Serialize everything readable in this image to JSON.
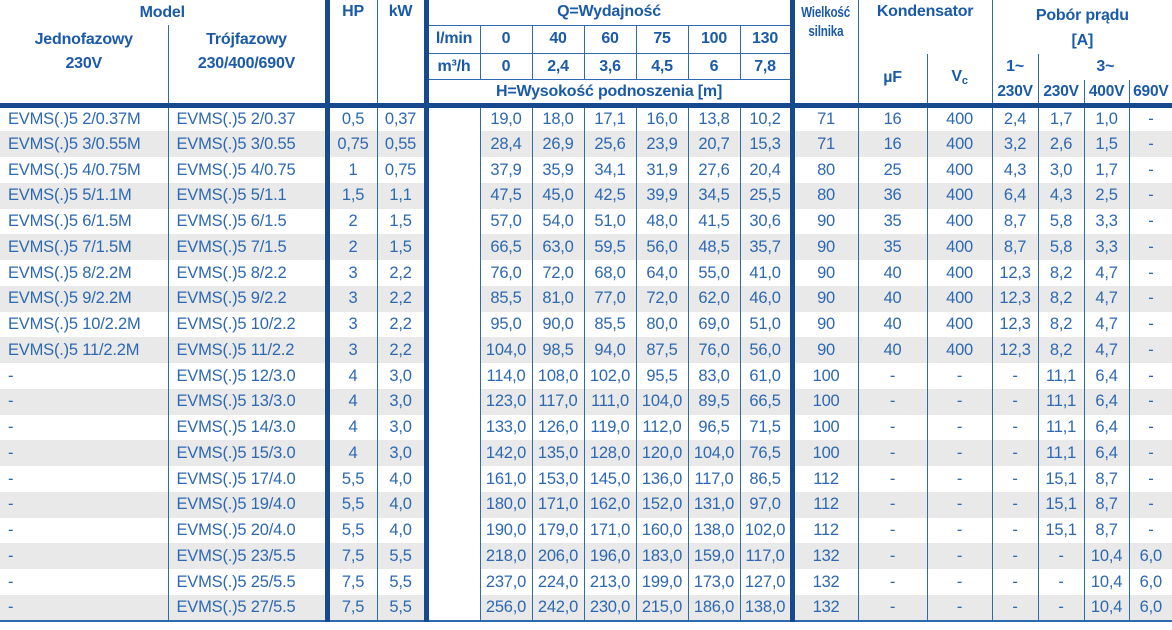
{
  "colors": {
    "text_blue": "#2d68b2",
    "header_blue": "#1a5aa8",
    "bar_navy": "#17498e",
    "stripe_gray": "#e9e9e9"
  },
  "header": {
    "model": "Model",
    "single_phase_label": "Jednofazowy",
    "single_phase_voltage": "230V",
    "three_phase_label": "Trójfazowy",
    "three_phase_voltage": "230/400/690V",
    "hp": "HP",
    "kw": "kW",
    "q_title": "Q=Wydajność",
    "lmin_label": "l/min",
    "m3h_label": "m³/h",
    "lmin_values": [
      "0",
      "40",
      "60",
      "75",
      "100",
      "130"
    ],
    "m3h_values": [
      "0",
      "2,4",
      "3,6",
      "4,5",
      "6",
      "7,8"
    ],
    "h_row_label": "H=Wysokość podnoszenia [m]",
    "motor_size_line1": "Wielkość",
    "motor_size_line2": "silnika",
    "kondensator": "Kondensator",
    "uf": "µF",
    "vc_main": "V",
    "vc_sub": "c",
    "pobor_line1": "Pobór prądu",
    "pobor_line2": "[A]",
    "phase1": "1~",
    "phase3": "3~",
    "volt_cols": [
      "230V",
      "230V",
      "400V",
      "690V"
    ]
  },
  "rows": [
    {
      "m1": "EVMS(.)5 2/0.37M",
      "m2": "EVMS(.)5 2/0.37",
      "hp": "0,5",
      "kw": "0,37",
      "h": [
        "19,0",
        "18,0",
        "17,1",
        "16,0",
        "13,8",
        "10,2"
      ],
      "siln": "71",
      "uf": "16",
      "vc": "400",
      "a": [
        "2,4",
        "1,7",
        "1,0",
        "-"
      ]
    },
    {
      "m1": "EVMS(.)5 3/0.55M",
      "m2": "EVMS(.)5 3/0.55",
      "hp": "0,75",
      "kw": "0,55",
      "h": [
        "28,4",
        "26,9",
        "25,6",
        "23,9",
        "20,7",
        "15,3"
      ],
      "siln": "71",
      "uf": "16",
      "vc": "400",
      "a": [
        "3,2",
        "2,6",
        "1,5",
        "-"
      ]
    },
    {
      "m1": "EVMS(.)5 4/0.75M",
      "m2": "EVMS(.)5 4/0.75",
      "hp": "1",
      "kw": "0,75",
      "h": [
        "37,9",
        "35,9",
        "34,1",
        "31,9",
        "27,6",
        "20,4"
      ],
      "siln": "80",
      "uf": "25",
      "vc": "400",
      "a": [
        "4,3",
        "3,0",
        "1,7",
        "-"
      ]
    },
    {
      "m1": "EVMS(.)5 5/1.1M",
      "m2": "EVMS(.)5 5/1.1",
      "hp": "1,5",
      "kw": "1,1",
      "h": [
        "47,5",
        "45,0",
        "42,5",
        "39,9",
        "34,5",
        "25,5"
      ],
      "siln": "80",
      "uf": "36",
      "vc": "400",
      "a": [
        "6,4",
        "4,3",
        "2,5",
        "-"
      ]
    },
    {
      "m1": "EVMS(.)5 6/1.5M",
      "m2": "EVMS(.)5 6/1.5",
      "hp": "2",
      "kw": "1,5",
      "h": [
        "57,0",
        "54,0",
        "51,0",
        "48,0",
        "41,5",
        "30,6"
      ],
      "siln": "90",
      "uf": "35",
      "vc": "400",
      "a": [
        "8,7",
        "5,8",
        "3,3",
        "-"
      ]
    },
    {
      "m1": "EVMS(.)5 7/1.5M",
      "m2": "EVMS(.)5 7/1.5",
      "hp": "2",
      "kw": "1,5",
      "h": [
        "66,5",
        "63,0",
        "59,5",
        "56,0",
        "48,5",
        "35,7"
      ],
      "siln": "90",
      "uf": "35",
      "vc": "400",
      "a": [
        "8,7",
        "5,8",
        "3,3",
        "-"
      ]
    },
    {
      "m1": "EVMS(.)5 8/2.2M",
      "m2": "EVMS(.)5 8/2.2",
      "hp": "3",
      "kw": "2,2",
      "h": [
        "76,0",
        "72,0",
        "68,0",
        "64,0",
        "55,0",
        "41,0"
      ],
      "siln": "90",
      "uf": "40",
      "vc": "400",
      "a": [
        "12,3",
        "8,2",
        "4,7",
        "-"
      ]
    },
    {
      "m1": "EVMS(.)5 9/2.2M",
      "m2": "EVMS(.)5 9/2.2",
      "hp": "3",
      "kw": "2,2",
      "h": [
        "85,5",
        "81,0",
        "77,0",
        "72,0",
        "62,0",
        "46,0"
      ],
      "siln": "90",
      "uf": "40",
      "vc": "400",
      "a": [
        "12,3",
        "8,2",
        "4,7",
        "-"
      ]
    },
    {
      "m1": "EVMS(.)5 10/2.2M",
      "m2": "EVMS(.)5 10/2.2",
      "hp": "3",
      "kw": "2,2",
      "h": [
        "95,0",
        "90,0",
        "85,5",
        "80,0",
        "69,0",
        "51,0"
      ],
      "siln": "90",
      "uf": "40",
      "vc": "400",
      "a": [
        "12,3",
        "8,2",
        "4,7",
        "-"
      ]
    },
    {
      "m1": "EVMS(.)5 11/2.2M",
      "m2": "EVMS(.)5 11/2.2",
      "hp": "3",
      "kw": "2,2",
      "h": [
        "104,0",
        "98,5",
        "94,0",
        "87,5",
        "76,0",
        "56,0"
      ],
      "siln": "90",
      "uf": "40",
      "vc": "400",
      "a": [
        "12,3",
        "8,2",
        "4,7",
        "-"
      ]
    },
    {
      "m1": "-",
      "m2": "EVMS(.)5 12/3.0",
      "hp": "4",
      "kw": "3,0",
      "h": [
        "114,0",
        "108,0",
        "102,0",
        "95,5",
        "83,0",
        "61,0"
      ],
      "siln": "100",
      "uf": "-",
      "vc": "-",
      "a": [
        "-",
        "11,1",
        "6,4",
        "-"
      ]
    },
    {
      "m1": "-",
      "m2": "EVMS(.)5 13/3.0",
      "hp": "4",
      "kw": "3,0",
      "h": [
        "123,0",
        "117,0",
        "111,0",
        "104,0",
        "89,5",
        "66,5"
      ],
      "siln": "100",
      "uf": "-",
      "vc": "-",
      "a": [
        "-",
        "11,1",
        "6,4",
        "-"
      ]
    },
    {
      "m1": "-",
      "m2": "EVMS(.)5 14/3.0",
      "hp": "4",
      "kw": "3,0",
      "h": [
        "133,0",
        "126,0",
        "119,0",
        "112,0",
        "96,5",
        "71,5"
      ],
      "siln": "100",
      "uf": "-",
      "vc": "-",
      "a": [
        "-",
        "11,1",
        "6,4",
        "-"
      ]
    },
    {
      "m1": "-",
      "m2": "EVMS(.)5 15/3.0",
      "hp": "4",
      "kw": "3,0",
      "h": [
        "142,0",
        "135,0",
        "128,0",
        "120,0",
        "104,0",
        "76,5"
      ],
      "siln": "100",
      "uf": "-",
      "vc": "-",
      "a": [
        "-",
        "11,1",
        "6,4",
        "-"
      ]
    },
    {
      "m1": "-",
      "m2": "EVMS(.)5 17/4.0",
      "hp": "5,5",
      "kw": "4,0",
      "h": [
        "161,0",
        "153,0",
        "145,0",
        "136,0",
        "117,0",
        "86,5"
      ],
      "siln": "112",
      "uf": "-",
      "vc": "-",
      "a": [
        "-",
        "15,1",
        "8,7",
        "-"
      ]
    },
    {
      "m1": "-",
      "m2": "EVMS(.)5 19/4.0",
      "hp": "5,5",
      "kw": "4,0",
      "h": [
        "180,0",
        "171,0",
        "162,0",
        "152,0",
        "131,0",
        "97,0"
      ],
      "siln": "112",
      "uf": "-",
      "vc": "-",
      "a": [
        "-",
        "15,1",
        "8,7",
        "-"
      ]
    },
    {
      "m1": "-",
      "m2": "EVMS(.)5 20/4.0",
      "hp": "5,5",
      "kw": "4,0",
      "h": [
        "190,0",
        "179,0",
        "171,0",
        "160,0",
        "138,0",
        "102,0"
      ],
      "siln": "112",
      "uf": "-",
      "vc": "-",
      "a": [
        "-",
        "15,1",
        "8,7",
        "-"
      ]
    },
    {
      "m1": "-",
      "m2": "EVMS(.)5 23/5.5",
      "hp": "7,5",
      "kw": "5,5",
      "h": [
        "218,0",
        "206,0",
        "196,0",
        "183,0",
        "159,0",
        "117,0"
      ],
      "siln": "132",
      "uf": "-",
      "vc": "-",
      "a": [
        "-",
        "-",
        "10,4",
        "6,0"
      ]
    },
    {
      "m1": "-",
      "m2": "EVMS(.)5 25/5.5",
      "hp": "7,5",
      "kw": "5,5",
      "h": [
        "237,0",
        "224,0",
        "213,0",
        "199,0",
        "173,0",
        "127,0"
      ],
      "siln": "132",
      "uf": "-",
      "vc": "-",
      "a": [
        "-",
        "-",
        "10,4",
        "6,0"
      ]
    },
    {
      "m1": "-",
      "m2": "EVMS(.)5 27/5.5",
      "hp": "7,5",
      "kw": "5,5",
      "h": [
        "256,0",
        "242,0",
        "230,0",
        "215,0",
        "186,0",
        "138,0"
      ],
      "siln": "132",
      "uf": "-",
      "vc": "-",
      "a": [
        "-",
        "-",
        "10,4",
        "6,0"
      ]
    }
  ]
}
